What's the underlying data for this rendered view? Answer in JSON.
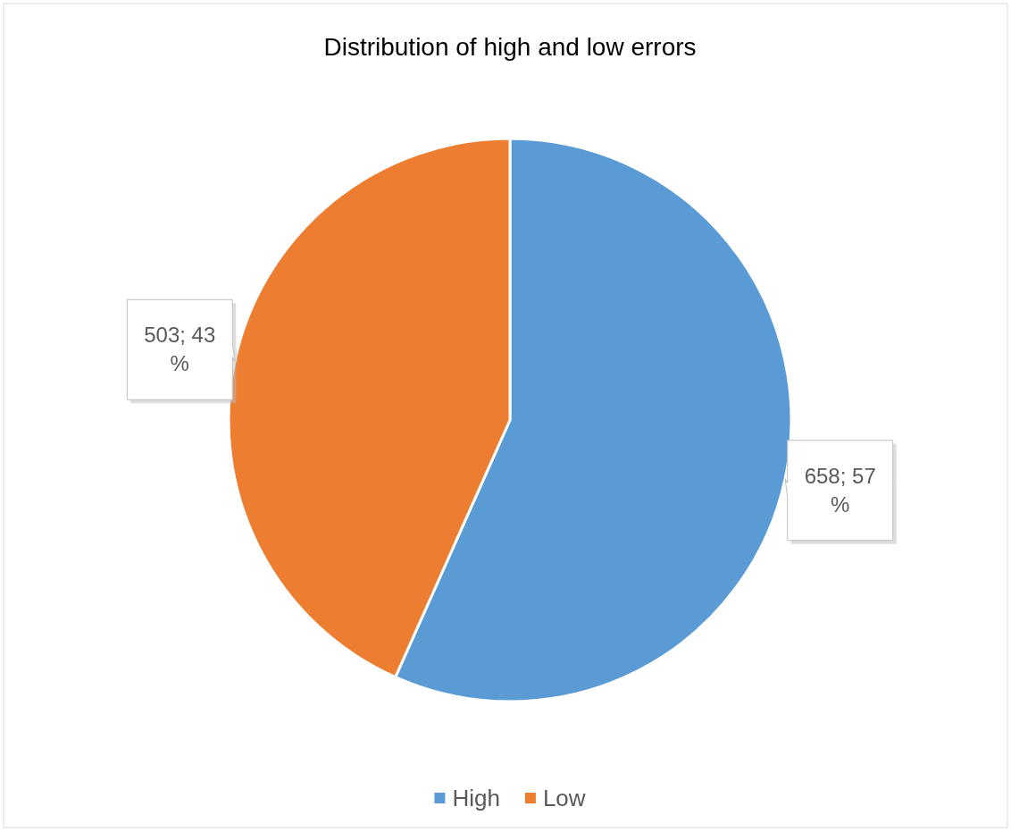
{
  "chart_data": {
    "type": "pie",
    "title": "Distribution of high and low errors",
    "categories": [
      "High",
      "Low"
    ],
    "values": [
      658,
      503
    ],
    "colors": [
      "#5b9bd5",
      "#ed7d31"
    ],
    "value_labels": [
      "658; 57 %",
      "503; 43 %"
    ],
    "legend": "bottom"
  }
}
